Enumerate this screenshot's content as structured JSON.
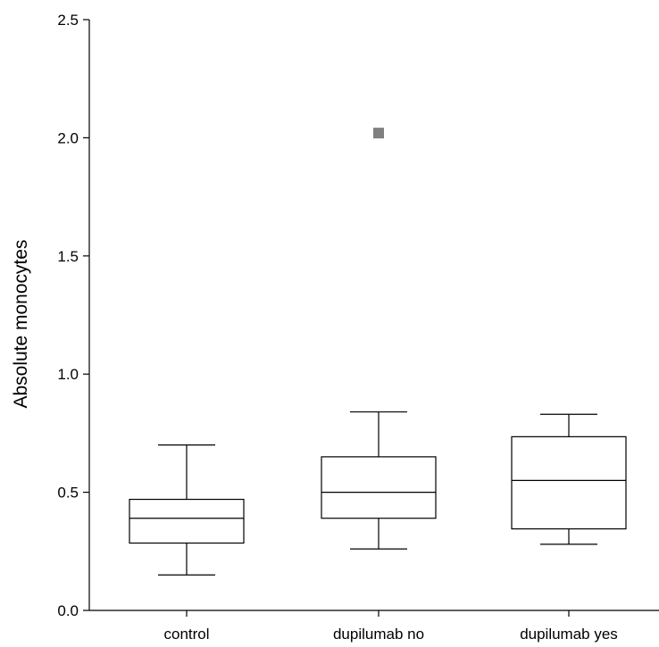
{
  "chart_data": {
    "type": "box",
    "title": "",
    "xlabel": "",
    "ylabel": "Absolute monocytes",
    "ylim": [
      0.0,
      2.5
    ],
    "yticks": [
      "0.0",
      "0.5",
      "1.0",
      "1.5",
      "2.0",
      "2.5"
    ],
    "grid": false,
    "legend": "none",
    "categories": [
      "control",
      "dupilumab no",
      "dupilumab yes"
    ],
    "boxes": [
      {
        "category": "control",
        "whisker_low": 0.15,
        "q1": 0.285,
        "median": 0.39,
        "q3": 0.47,
        "whisker_high": 0.7,
        "outliers": []
      },
      {
        "category": "dupilumab no",
        "whisker_low": 0.26,
        "q1": 0.39,
        "median": 0.5,
        "q3": 0.65,
        "whisker_high": 0.84,
        "outliers": [
          2.02
        ]
      },
      {
        "category": "dupilumab yes",
        "whisker_low": 0.28,
        "q1": 0.345,
        "median": 0.55,
        "q3": 0.735,
        "whisker_high": 0.83,
        "outliers": []
      }
    ],
    "colors": {
      "box_edge": "#000000",
      "box_fill": "#ffffff",
      "outlier": "#808080"
    }
  }
}
